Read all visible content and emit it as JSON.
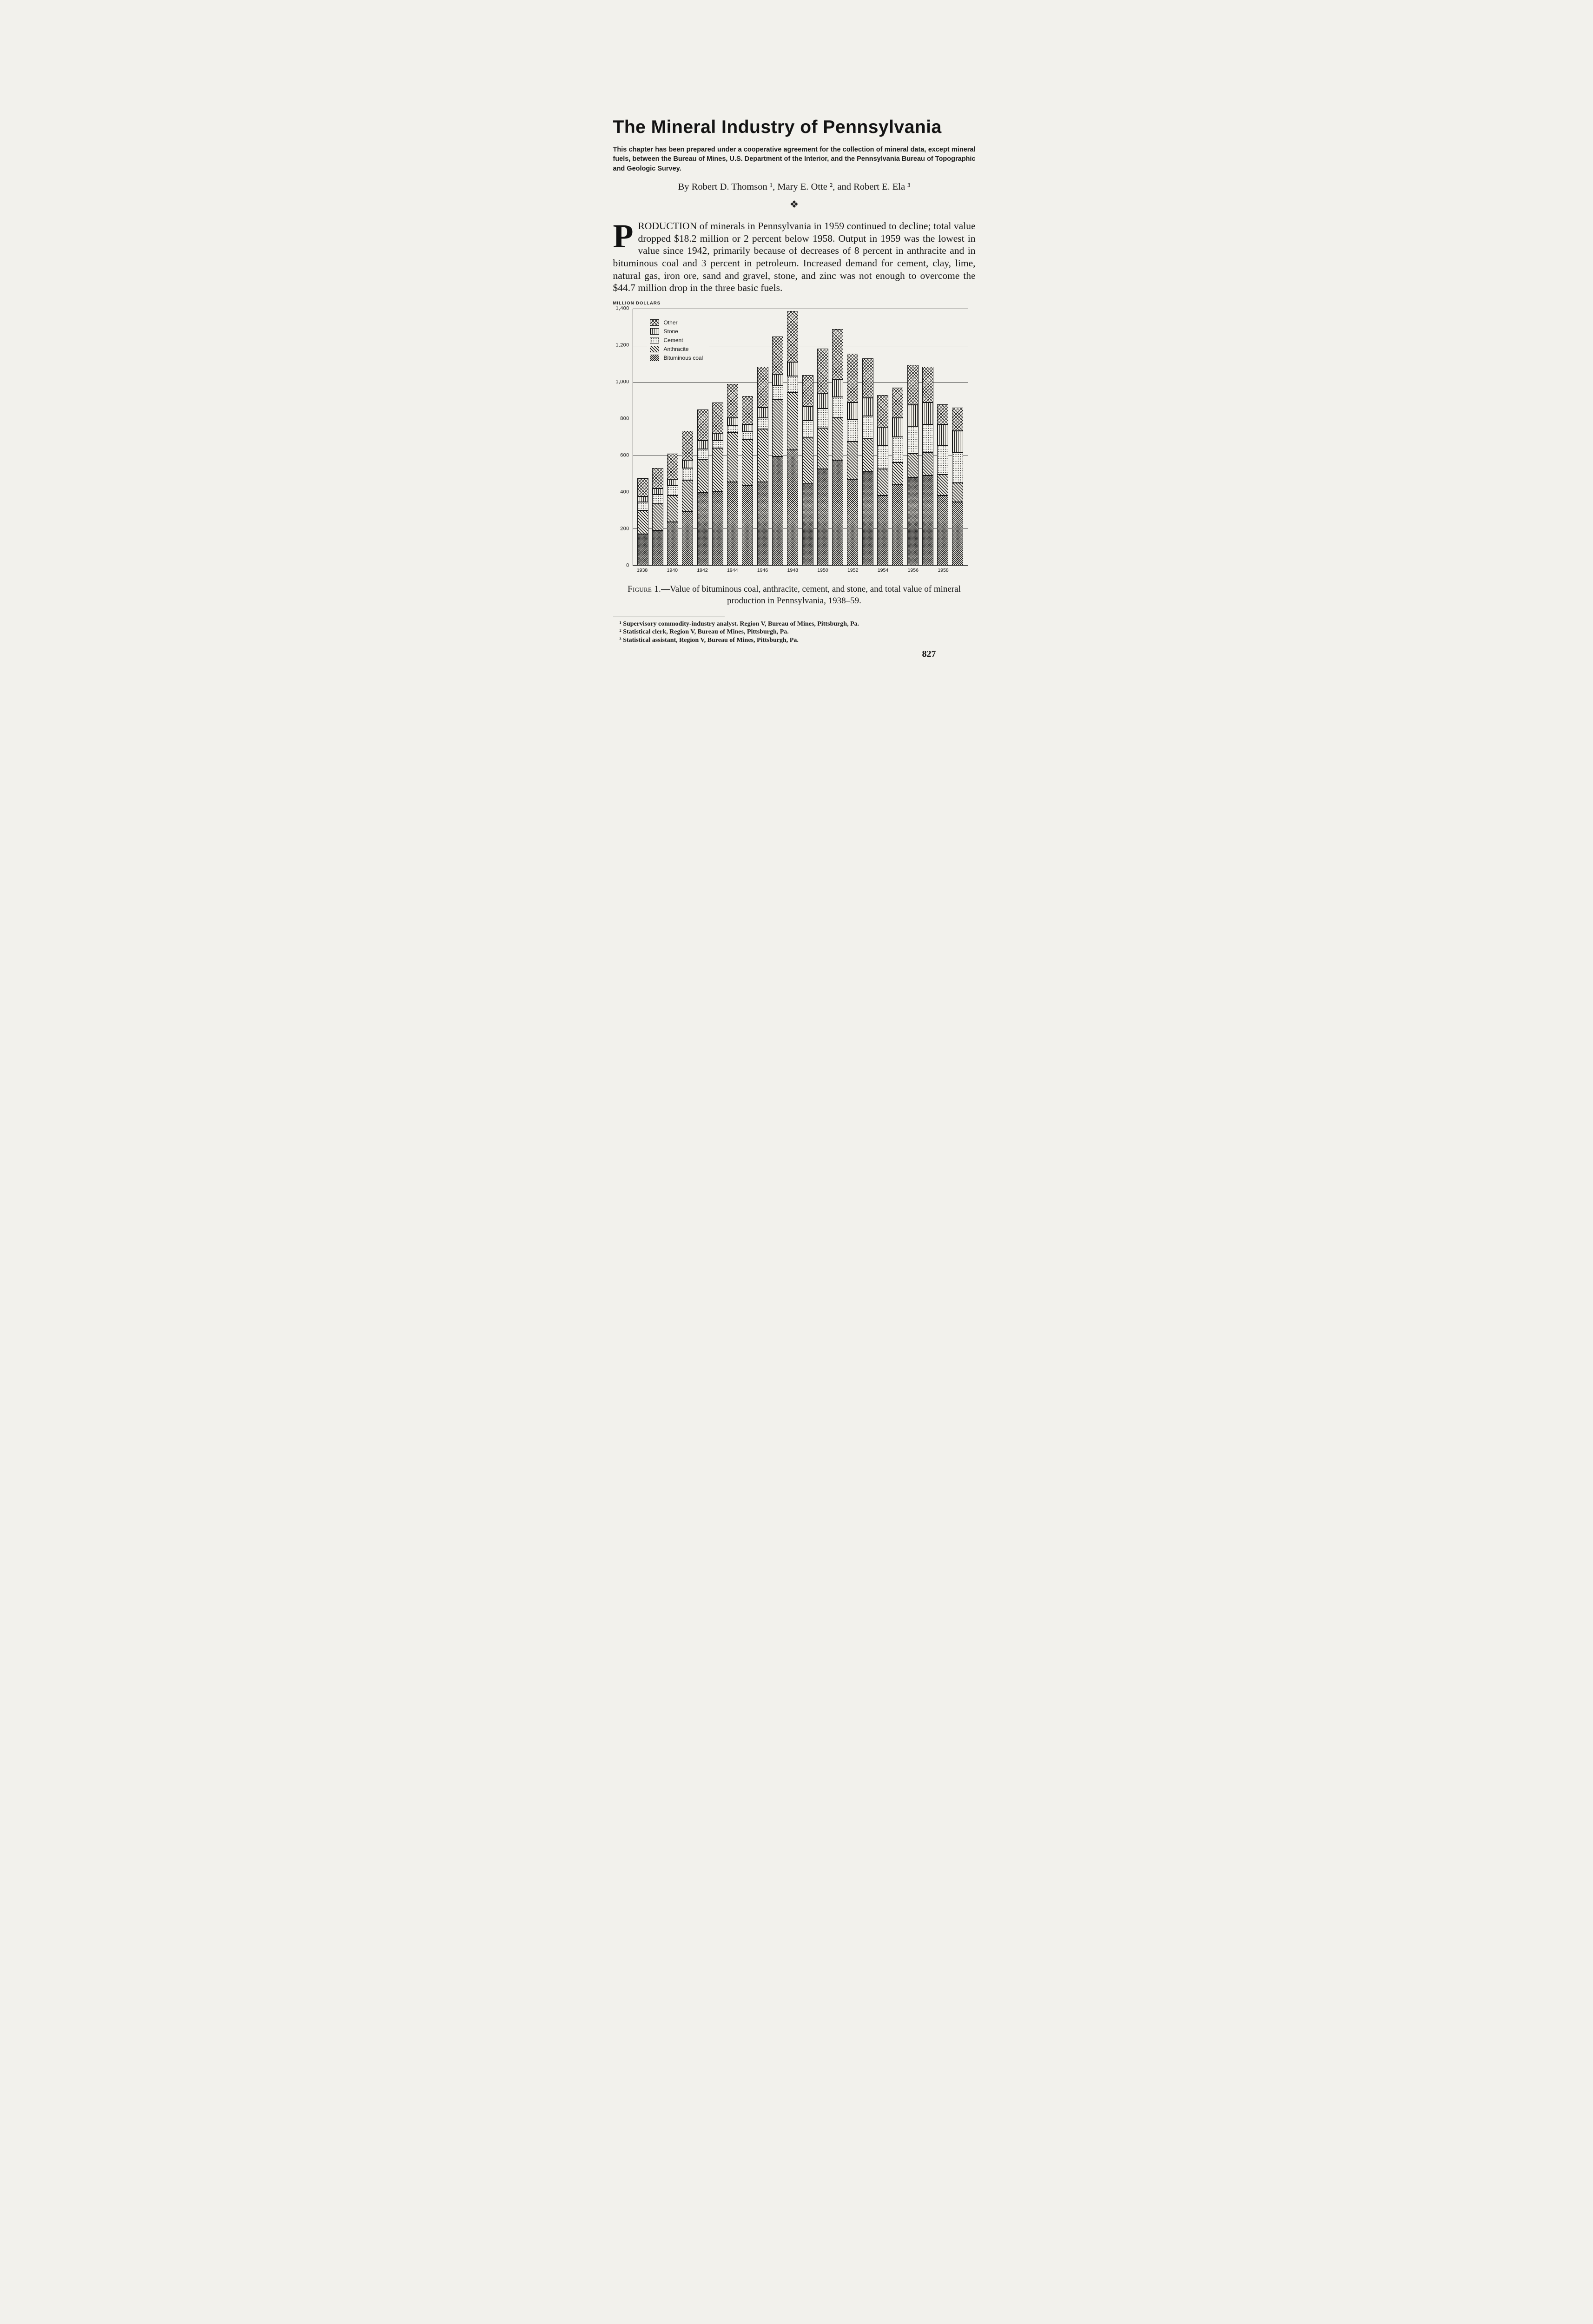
{
  "theme": {
    "paper": "#f2f1ec",
    "ink": "#1b1b1b"
  },
  "header": {
    "title": "The Mineral Industry of Pennsylvania",
    "note": "This chapter has been prepared under a cooperative agreement for the collection of mineral data, except mineral fuels, between the Bureau of Mines, U.S. Department of the Interior, and the Pennsylvania Bureau of Topographic and Geologic Survey.",
    "byline": "By Robert D. Thomson ¹, Mary E. Otte ², and Robert E. Ela ³",
    "ornament": "❖"
  },
  "body": {
    "drop_cap": "P",
    "paragraph": "RODUCTION of minerals in Pennsylvania in 1959 continued to decline; total value dropped $18.2 million or 2 percent below 1958.  Output in 1959 was the lowest in value since 1942, primarily because of decreases of 8 percent in anthracite and in bituminous coal and 3 percent in petroleum.  Increased demand for cement, clay, lime, natural gas, iron ore, sand and gravel, stone, and zinc was not enough to overcome the $44.7 million drop in the three basic fuels."
  },
  "figure": {
    "caption_label": "Figure 1.",
    "caption_text": "—Value of bituminous coal, anthracite, cement, and stone, and total value of mineral production in Pennsylvania, 1938–59."
  },
  "footnotes": [
    "¹ Supervisory commodity-industry analyst. Region V, Bureau of Mines, Pittsburgh, Pa.",
    "² Statistical clerk, Region V, Bureau of Mines, Pittsburgh, Pa.",
    "³ Statistical assistant, Region V, Bureau of Mines, Pittsburgh, Pa."
  ],
  "page_number": "827",
  "chart_data": {
    "type": "bar",
    "stacked": true,
    "unit_label": "MILLION DOLLARS",
    "title": "",
    "xlabel": "",
    "ylabel": "MILLION DOLLARS",
    "ylim": [
      0,
      1400
    ],
    "ytick_interval": 200,
    "ytick_labels": [
      "1,400",
      "1,200",
      "1,000",
      "800",
      "600",
      "400",
      "200",
      "0"
    ],
    "grid": true,
    "legend_position": "top-left",
    "legend": [
      "Other",
      "Stone",
      "Cement",
      "Anthracite",
      "Bituminous coal"
    ],
    "x": [
      1938,
      1939,
      1940,
      1941,
      1942,
      1943,
      1944,
      1945,
      1946,
      1947,
      1948,
      1949,
      1950,
      1951,
      1952,
      1953,
      1954,
      1955,
      1956,
      1957,
      1958,
      1959
    ],
    "x_tick_labels": [
      "1938",
      "1940",
      "1942",
      "1944",
      "1946",
      "1948",
      "1950",
      "1952",
      "1954",
      "1956",
      "1958"
    ],
    "series": [
      {
        "name": "Bituminous coal",
        "values": [
          170,
          190,
          235,
          295,
          395,
          400,
          455,
          435,
          455,
          595,
          630,
          445,
          525,
          575,
          470,
          510,
          380,
          440,
          480,
          490,
          380,
          345
        ]
      },
      {
        "name": "Anthracite",
        "values": [
          130,
          145,
          145,
          170,
          185,
          240,
          270,
          250,
          290,
          310,
          315,
          250,
          225,
          230,
          205,
          180,
          145,
          120,
          130,
          125,
          115,
          105
        ]
      },
      {
        "name": "Cement",
        "values": [
          45,
          50,
          55,
          65,
          55,
          40,
          40,
          45,
          60,
          75,
          90,
          95,
          105,
          115,
          120,
          125,
          130,
          140,
          150,
          155,
          160,
          165
        ]
      },
      {
        "name": "Stone",
        "values": [
          30,
          35,
          35,
          45,
          45,
          40,
          40,
          40,
          55,
          65,
          75,
          75,
          85,
          95,
          95,
          100,
          100,
          105,
          115,
          120,
          115,
          120
        ]
      },
      {
        "name": "Other",
        "values": [
          100,
          110,
          140,
          160,
          170,
          170,
          185,
          155,
          225,
          205,
          280,
          175,
          245,
          275,
          265,
          215,
          175,
          165,
          220,
          195,
          110,
          125
        ]
      }
    ]
  }
}
